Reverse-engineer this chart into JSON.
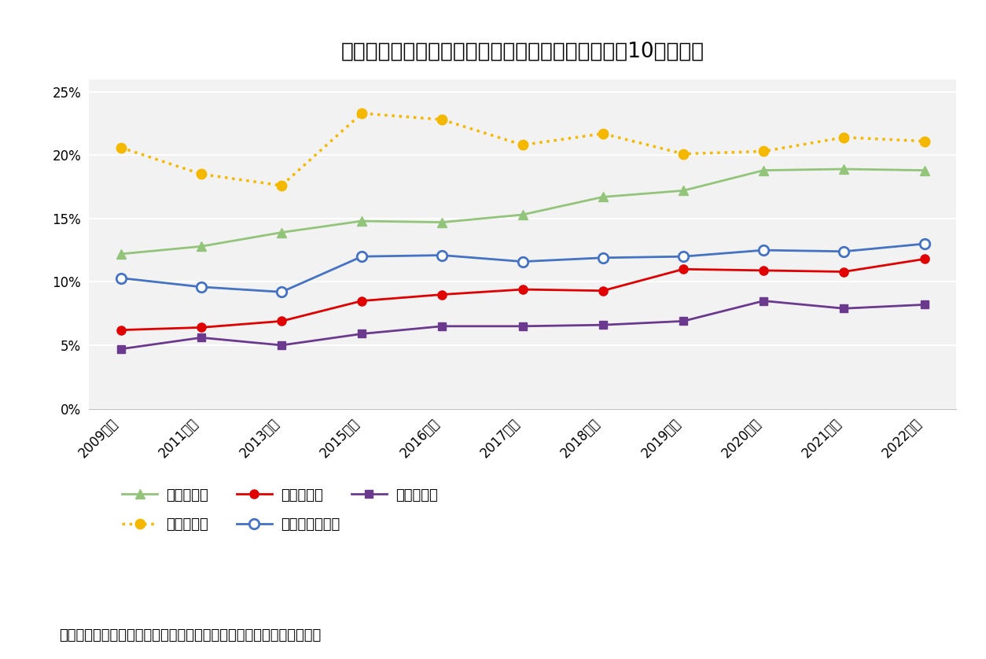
{
  "title": "図表１　役職別女性管理職等割合の推移（企業規模10人以上）",
  "footnote": "（資料）「『令和４年度雇用均等基本調査』の結果概要」から抜粋。",
  "x_labels": [
    "2009年度",
    "2011年度",
    "2013年度",
    "2015年度",
    "2016年度",
    "2017年度",
    "2018年度",
    "2019年度",
    "2020年度",
    "2021年度",
    "2022年度"
  ],
  "series": [
    {
      "name": "係長相当職",
      "color": "#92c47a",
      "marker": "^",
      "linestyle": "-",
      "linewidth": 2.0,
      "markersize": 8,
      "markerfacecolor": "#92c47a",
      "markeredgecolor": "#92c47a",
      "markeredgewidth": 1,
      "values": [
        12.2,
        12.8,
        13.9,
        14.8,
        14.7,
        15.3,
        16.7,
        17.2,
        18.8,
        18.9,
        18.8
      ]
    },
    {
      "name": "課長相当職",
      "color": "#e00000",
      "marker": "o",
      "linestyle": "-",
      "linewidth": 2.0,
      "markersize": 8,
      "markerfacecolor": "#e00000",
      "markeredgecolor": "#e00000",
      "markeredgewidth": 1,
      "values": [
        6.2,
        6.4,
        6.9,
        8.5,
        9.0,
        9.4,
        9.3,
        11.0,
        10.9,
        10.8,
        11.8
      ]
    },
    {
      "name": "部長相当職",
      "color": "#6b3a8e",
      "marker": "s",
      "linestyle": "-",
      "linewidth": 2.0,
      "markersize": 7,
      "markerfacecolor": "#6b3a8e",
      "markeredgecolor": "#6b3a8e",
      "markeredgewidth": 1,
      "values": [
        4.7,
        5.6,
        5.0,
        5.9,
        6.5,
        6.5,
        6.6,
        6.9,
        8.5,
        7.9,
        8.2
      ]
    },
    {
      "name": "役員相当職",
      "color": "#f5b800",
      "marker": "o",
      "linestyle": ":",
      "linewidth": 2.5,
      "markersize": 9,
      "markerfacecolor": "#f5b800",
      "markeredgecolor": "#f5b800",
      "markeredgewidth": 1,
      "values": [
        20.6,
        18.5,
        17.6,
        23.3,
        22.8,
        20.8,
        21.7,
        20.1,
        20.3,
        21.4,
        21.1
      ]
    },
    {
      "name": "課長相当職以上",
      "color": "#4472c4",
      "marker": "o",
      "linestyle": "-",
      "linewidth": 2.0,
      "markersize": 9,
      "markerfacecolor": "white",
      "markeredgecolor": "#4472c4",
      "markeredgewidth": 2,
      "values": [
        10.3,
        9.6,
        9.2,
        12.0,
        12.1,
        11.6,
        11.9,
        12.0,
        12.5,
        12.4,
        13.0
      ]
    }
  ],
  "ylim": [
    0,
    26
  ],
  "yticks": [
    0,
    5,
    10,
    15,
    20,
    25
  ],
  "yticklabels": [
    "0%",
    "5%",
    "10%",
    "15%",
    "20%",
    "25%"
  ],
  "background_color": "#ffffff",
  "plot_bg_color": "#f2f2f2",
  "grid_color": "#ffffff",
  "title_fontsize": 19,
  "legend_fontsize": 13,
  "tick_fontsize": 12,
  "footnote_fontsize": 13
}
